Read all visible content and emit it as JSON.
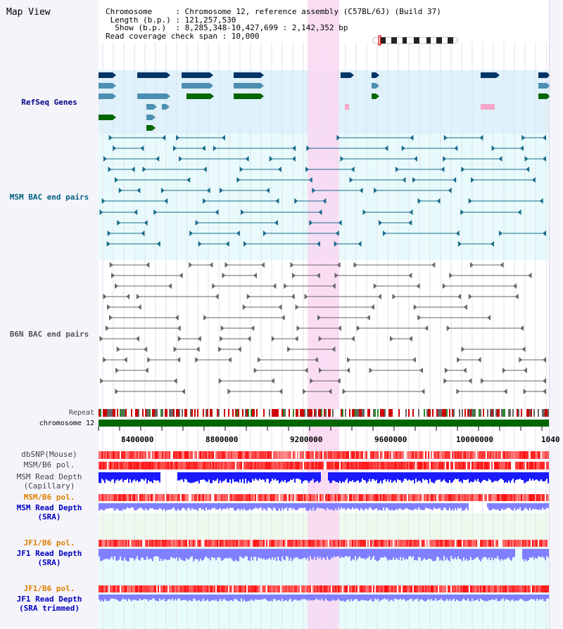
{
  "app": {
    "title": "Map View"
  },
  "info": {
    "line1": "Chromosome     : Chromosome 12, reference assembly (C57BL/6J) (Build 37)",
    "line2": " Length (b.p.) : 121,257,530",
    "line3": "  Show (b.p.)  : 8,285,348-10,427,699 : 2,142,352 bp",
    "line4": "Read coverage check span : 10,000"
  },
  "tracks": {
    "refseq": "RefSeq Genes",
    "msm_bac": "MSM BAC end pairs",
    "b6n_bac": "B6N BAC end pairs",
    "repeat": "Repeat",
    "chromosome": "chromosome 12",
    "dbsnp": "dbSNP(Mouse)",
    "msm_pol": "MSM/B6 pol.",
    "msm_depth_cap_1": "MSM Read Depth",
    "msm_depth_cap_2": "(Capillary)",
    "msm_pol2": "MSM/B6 pol.",
    "msm_depth_sra_1": "MSM Read Depth",
    "msm_depth_sra_2": "(SRA)",
    "jf1_pol": "JF1/B6 pol.",
    "jf1_depth_sra_1": "JF1 Read Depth",
    "jf1_depth_sra_2": "(SRA)",
    "jf1_pol2": "JF1/B6 pol.",
    "jf1_depth_trim_1": "JF1 Read Depth",
    "jf1_depth_trim_2": "(SRA trimmed)"
  },
  "axis": {
    "ticks": [
      "8400000",
      "8800000",
      "9200000",
      "9600000",
      "10000000",
      "1040"
    ]
  },
  "colors": {
    "refseq_bg": "#dff1fa",
    "bac_bg": "#e8fafb",
    "highlight": "#f9d7f1",
    "chromosome": "#006600",
    "dark_gene": "#003366",
    "mid_gene": "#4d8fb3",
    "green_gene": "#006600",
    "pink_gene": "#f7a6c8",
    "msm_bac": "#1a6a8c",
    "b6n_bac": "#666666",
    "depth_dark": "#1a1aff",
    "depth_light": "#8080ff"
  }
}
